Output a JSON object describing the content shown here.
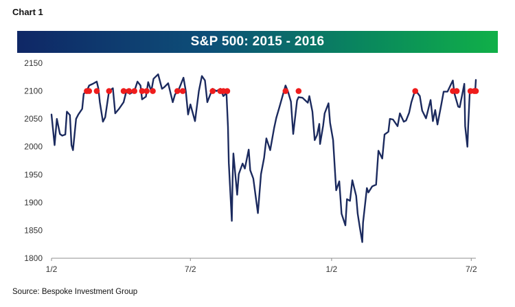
{
  "header": {
    "chart_label": "Chart 1"
  },
  "source": "Source: Bespoke Investment Group",
  "colors": {
    "line": "#1b2a5e",
    "marker": "#ee1c1c",
    "axis": "#8c8c8c",
    "title_gradient_start": "#0f2766",
    "title_gradient_end": "#10b048"
  },
  "chart_data": {
    "type": "line",
    "title": "S&P 500: 2015 - 2016",
    "xlabel": "",
    "ylabel": "",
    "ylim": [
      1800,
      2150
    ],
    "yticks": [
      1800,
      1850,
      1900,
      1950,
      2000,
      2050,
      2100,
      2150
    ],
    "xlim": [
      "2015-01-02",
      "2016-07-08"
    ],
    "xticks": [
      {
        "date": "2015-01-02",
        "label": "1/2"
      },
      {
        "date": "2015-07-02",
        "label": "7/2"
      },
      {
        "date": "2016-01-02",
        "label": "1/2"
      },
      {
        "date": "2016-07-02",
        "label": "7/2"
      }
    ],
    "grid": false,
    "legend": "none",
    "series": [
      {
        "values": [
          [
            "2015-01-02",
            2058
          ],
          [
            "2015-01-06",
            2003
          ],
          [
            "2015-01-09",
            2050
          ],
          [
            "2015-01-13",
            2023
          ],
          [
            "2015-01-16",
            2020
          ],
          [
            "2015-01-20",
            2022
          ],
          [
            "2015-01-22",
            2063
          ],
          [
            "2015-01-26",
            2057
          ],
          [
            "2015-01-28",
            2003
          ],
          [
            "2015-01-30",
            1994
          ],
          [
            "2015-02-03",
            2050
          ],
          [
            "2015-02-06",
            2058
          ],
          [
            "2015-02-11",
            2068
          ],
          [
            "2015-02-13",
            2095
          ],
          [
            "2015-02-17",
            2100
          ],
          [
            "2015-02-20",
            2110
          ],
          [
            "2015-02-25",
            2113
          ],
          [
            "2015-03-02",
            2117
          ],
          [
            "2015-03-04",
            2105
          ],
          [
            "2015-03-06",
            2080
          ],
          [
            "2015-03-10",
            2045
          ],
          [
            "2015-03-13",
            2053
          ],
          [
            "2015-03-18",
            2100
          ],
          [
            "2015-03-23",
            2105
          ],
          [
            "2015-03-26",
            2060
          ],
          [
            "2015-03-31",
            2068
          ],
          [
            "2015-04-06",
            2080
          ],
          [
            "2015-04-10",
            2102
          ],
          [
            "2015-04-14",
            2095
          ],
          [
            "2015-04-20",
            2100
          ],
          [
            "2015-04-24",
            2117
          ],
          [
            "2015-04-28",
            2110
          ],
          [
            "2015-04-30",
            2085
          ],
          [
            "2015-05-05",
            2090
          ],
          [
            "2015-05-08",
            2116
          ],
          [
            "2015-05-12",
            2100
          ],
          [
            "2015-05-15",
            2122
          ],
          [
            "2015-05-21",
            2130
          ],
          [
            "2015-05-26",
            2104
          ],
          [
            "2015-05-29",
            2107
          ],
          [
            "2015-06-03",
            2114
          ],
          [
            "2015-06-09",
            2080
          ],
          [
            "2015-06-12",
            2094
          ],
          [
            "2015-06-16",
            2100
          ],
          [
            "2015-06-19",
            2110
          ],
          [
            "2015-06-23",
            2124
          ],
          [
            "2015-06-26",
            2100
          ],
          [
            "2015-06-29",
            2058
          ],
          [
            "2015-07-02",
            2076
          ],
          [
            "2015-07-08",
            2046
          ],
          [
            "2015-07-13",
            2100
          ],
          [
            "2015-07-17",
            2127
          ],
          [
            "2015-07-21",
            2119
          ],
          [
            "2015-07-24",
            2080
          ],
          [
            "2015-07-28",
            2094
          ],
          [
            "2015-07-31",
            2104
          ],
          [
            "2015-08-05",
            2100
          ],
          [
            "2015-08-10",
            2104
          ],
          [
            "2015-08-14",
            2091
          ],
          [
            "2015-08-18",
            2096
          ],
          [
            "2015-08-20",
            2036
          ],
          [
            "2015-08-21",
            1971
          ],
          [
            "2015-08-24",
            1893
          ],
          [
            "2015-08-25",
            1867
          ],
          [
            "2015-08-26",
            1940
          ],
          [
            "2015-08-27",
            1988
          ],
          [
            "2015-09-01",
            1914
          ],
          [
            "2015-09-03",
            1951
          ],
          [
            "2015-09-08",
            1970
          ],
          [
            "2015-09-11",
            1961
          ],
          [
            "2015-09-16",
            1995
          ],
          [
            "2015-09-18",
            1958
          ],
          [
            "2015-09-22",
            1943
          ],
          [
            "2015-09-28",
            1881
          ],
          [
            "2015-10-02",
            1951
          ],
          [
            "2015-10-06",
            1980
          ],
          [
            "2015-10-09",
            2015
          ],
          [
            "2015-10-14",
            1994
          ],
          [
            "2015-10-19",
            2033
          ],
          [
            "2015-10-22",
            2052
          ],
          [
            "2015-10-26",
            2071
          ],
          [
            "2015-11-03",
            2110
          ],
          [
            "2015-11-06",
            2100
          ],
          [
            "2015-11-10",
            2081
          ],
          [
            "2015-11-13",
            2023
          ],
          [
            "2015-11-18",
            2083
          ],
          [
            "2015-11-20",
            2089
          ],
          [
            "2015-11-25",
            2088
          ],
          [
            "2015-12-02",
            2079
          ],
          [
            "2015-12-04",
            2091
          ],
          [
            "2015-12-08",
            2063
          ],
          [
            "2015-12-11",
            2012
          ],
          [
            "2015-12-14",
            2021
          ],
          [
            "2015-12-17",
            2041
          ],
          [
            "2015-12-18",
            2005
          ],
          [
            "2015-12-22",
            2038
          ],
          [
            "2015-12-24",
            2060
          ],
          [
            "2015-12-29",
            2078
          ],
          [
            "2015-12-31",
            2043
          ],
          [
            "2016-01-04",
            2012
          ],
          [
            "2016-01-07",
            1943
          ],
          [
            "2016-01-08",
            1922
          ],
          [
            "2016-01-12",
            1938
          ],
          [
            "2016-01-15",
            1880
          ],
          [
            "2016-01-20",
            1859
          ],
          [
            "2016-01-22",
            1906
          ],
          [
            "2016-01-26",
            1903
          ],
          [
            "2016-01-29",
            1940
          ],
          [
            "2016-02-03",
            1912
          ],
          [
            "2016-02-05",
            1880
          ],
          [
            "2016-02-08",
            1853
          ],
          [
            "2016-02-11",
            1829
          ],
          [
            "2016-02-12",
            1864
          ],
          [
            "2016-02-17",
            1926
          ],
          [
            "2016-02-19",
            1918
          ],
          [
            "2016-02-24",
            1929
          ],
          [
            "2016-02-29",
            1932
          ],
          [
            "2016-03-03",
            1993
          ],
          [
            "2016-03-08",
            1979
          ],
          [
            "2016-03-11",
            2022
          ],
          [
            "2016-03-16",
            2027
          ],
          [
            "2016-03-18",
            2050
          ],
          [
            "2016-03-22",
            2049
          ],
          [
            "2016-03-28",
            2037
          ],
          [
            "2016-03-31",
            2060
          ],
          [
            "2016-04-05",
            2045
          ],
          [
            "2016-04-08",
            2047
          ],
          [
            "2016-04-12",
            2061
          ],
          [
            "2016-04-15",
            2080
          ],
          [
            "2016-04-20",
            2102
          ],
          [
            "2016-04-26",
            2091
          ],
          [
            "2016-04-29",
            2065
          ],
          [
            "2016-05-04",
            2051
          ],
          [
            "2016-05-10",
            2084
          ],
          [
            "2016-05-13",
            2046
          ],
          [
            "2016-05-16",
            2066
          ],
          [
            "2016-05-19",
            2040
          ],
          [
            "2016-05-24",
            2076
          ],
          [
            "2016-05-27",
            2099
          ],
          [
            "2016-06-01",
            2099
          ],
          [
            "2016-06-08",
            2119
          ],
          [
            "2016-06-10",
            2096
          ],
          [
            "2016-06-15",
            2072
          ],
          [
            "2016-06-17",
            2071
          ],
          [
            "2016-06-23",
            2113
          ],
          [
            "2016-06-24",
            2037
          ],
          [
            "2016-06-27",
            2000
          ],
          [
            "2016-06-28",
            2036
          ],
          [
            "2016-06-30",
            2098
          ],
          [
            "2016-07-01",
            2103
          ],
          [
            "2016-07-06",
            2100
          ],
          [
            "2016-07-07",
            2097
          ],
          [
            "2016-07-08",
            2120
          ]
        ]
      }
    ],
    "markers": {
      "y": 2100,
      "dates": [
        "2015-02-17",
        "2015-02-20",
        "2015-03-02",
        "2015-03-18",
        "2015-04-06",
        "2015-04-13",
        "2015-04-20",
        "2015-04-30",
        "2015-05-06",
        "2015-05-14",
        "2015-06-15",
        "2015-06-22",
        "2015-07-31",
        "2015-08-10",
        "2015-08-14",
        "2015-08-19",
        "2015-11-03",
        "2015-11-20",
        "2016-04-20",
        "2016-06-08",
        "2016-06-13",
        "2016-07-01",
        "2016-07-06",
        "2016-07-08"
      ]
    }
  }
}
